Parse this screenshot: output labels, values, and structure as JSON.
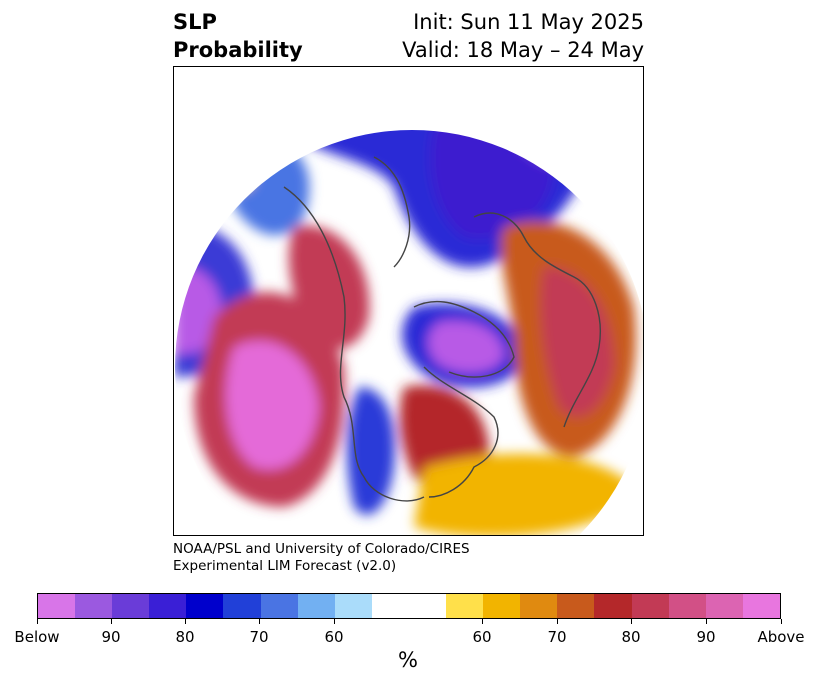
{
  "title": {
    "variable": "SLP",
    "kind": "Probability",
    "init": "Init: Sun 11 May 2025",
    "valid": "Valid: 18 May – 24 May"
  },
  "credit": {
    "line1": "NOAA/PSL and University of Colorado/CIRES",
    "line2": "Experimental LIM Forecast (v2.0)"
  },
  "map": {
    "projection": "north-polar-stereographic",
    "features": [
      "coastlines",
      "country-borders",
      "state-borders"
    ],
    "anomalies": [
      {
        "region": "northeast-pacific",
        "sign": "above",
        "level": "90+"
      },
      {
        "region": "western-north-america",
        "sign": "above",
        "level": "80-90"
      },
      {
        "region": "eastern-united-states",
        "sign": "above",
        "level": "80"
      },
      {
        "region": "north-atlantic",
        "sign": "above",
        "level": "60-70"
      },
      {
        "region": "western-europe",
        "sign": "above",
        "level": "80-90"
      },
      {
        "region": "eastern-europe",
        "sign": "above",
        "level": "90"
      },
      {
        "region": "hudson-bay",
        "sign": "below",
        "level": "90+"
      },
      {
        "region": "arctic-ocean",
        "sign": "below",
        "level": "80"
      },
      {
        "region": "central-siberia",
        "sign": "below",
        "level": "90"
      },
      {
        "region": "western-pacific",
        "sign": "below",
        "level": "90+"
      },
      {
        "region": "central-united-states",
        "sign": "below",
        "level": "80"
      }
    ]
  },
  "colorbar": {
    "colors": [
      "#d875e8",
      "#9b59e0",
      "#6a3cd8",
      "#3a1fd6",
      "#0000cc",
      "#2140d8",
      "#4a74e3",
      "#72b0f2",
      "#aadcfa",
      "#ffffff",
      "#ffffff",
      "#ffe04a",
      "#f2b400",
      "#e08a10",
      "#c85a1c",
      "#b4282a",
      "#c23a55",
      "#d25086",
      "#dc64b2",
      "#e876df"
    ],
    "ticks": [
      "Below",
      "90",
      "80",
      "70",
      "60",
      "60",
      "70",
      "80",
      "90",
      "Above"
    ],
    "unit": "%"
  }
}
